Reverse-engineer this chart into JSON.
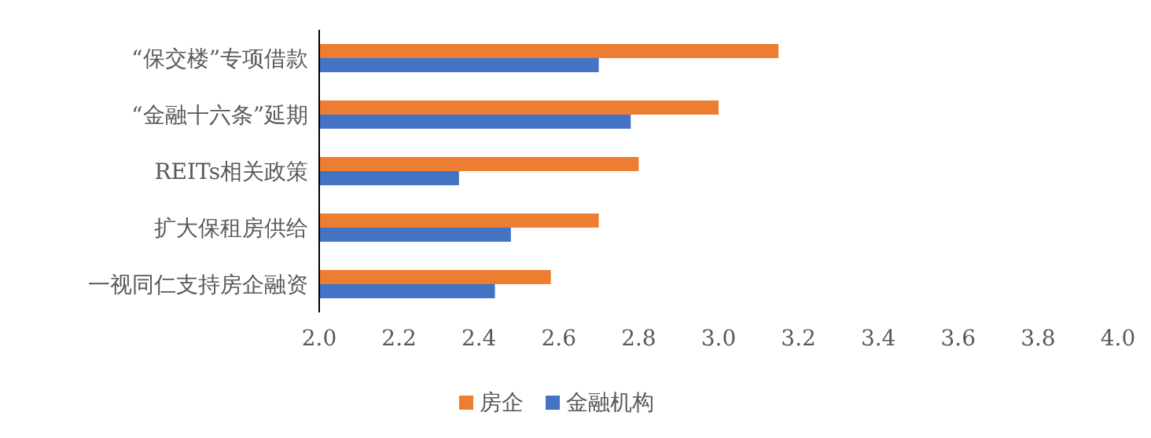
{
  "chart_data": {
    "type": "bar",
    "orientation": "horizontal",
    "categories": [
      "“保交楼”专项借款",
      "“金融十六条”延期",
      "REITs相关政策",
      "扩大保租房供给",
      "一视同仁支持房企融资"
    ],
    "series": [
      {
        "name": "房企",
        "color": "#ed7d31",
        "values": [
          3.15,
          3.0,
          2.8,
          2.7,
          2.58
        ]
      },
      {
        "name": "金融机构",
        "color": "#4472c4",
        "values": [
          2.7,
          2.78,
          2.35,
          2.48,
          2.44
        ]
      }
    ],
    "xlim": [
      2.0,
      4.0
    ],
    "xticks": [
      {
        "value": 2.0,
        "label": "2.0"
      },
      {
        "value": 2.2,
        "label": "2.2"
      },
      {
        "value": 2.4,
        "label": "2.4"
      },
      {
        "value": 2.6,
        "label": "2.6"
      },
      {
        "value": 2.8,
        "label": "2.8"
      },
      {
        "value": 3.0,
        "label": "3.0"
      },
      {
        "value": 3.2,
        "label": "3.2"
      },
      {
        "value": 3.4,
        "label": "3.4"
      },
      {
        "value": 3.6,
        "label": "3.6"
      },
      {
        "value": 3.8,
        "label": "3.8"
      },
      {
        "value": 4.0,
        "label": "4.0"
      }
    ],
    "legend": "bottom"
  }
}
